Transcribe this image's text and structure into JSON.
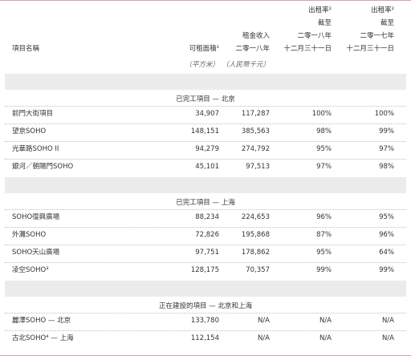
{
  "header": {
    "columns": [
      [
        "項目名稱"
      ],
      [
        "可租面積¹"
      ],
      [
        "租金收入",
        "二零一八年"
      ],
      [
        "出租率²",
        "截至",
        "二零一八年",
        "十二月三十一日"
      ],
      [
        "出租率²",
        "截至",
        "二零一七年",
        "十二月三十一日"
      ]
    ],
    "units": [
      "（平方米）",
      "（人民幣千元）"
    ]
  },
  "sections": [
    {
      "title": "已完工項目 — 北京",
      "rows": [
        [
          "前門大街項目",
          "34,907",
          "117,287",
          "100%",
          "100%"
        ],
        [
          "望京SOHO",
          "148,151",
          "385,563",
          "98%",
          "99%"
        ],
        [
          "光華路SOHO II",
          "94,279",
          "274,792",
          "95%",
          "97%"
        ],
        [
          "銀河／朝陽門SOHO",
          "45,101",
          "97,513",
          "97%",
          "98%"
        ]
      ]
    },
    {
      "title": "已完工項目 — 上海",
      "rows": [
        [
          "SOHO復興廣場",
          "88,234",
          "224,653",
          "96%",
          "95%"
        ],
        [
          "外灘SOHO",
          "72,826",
          "195,868",
          "87%",
          "96%"
        ],
        [
          "SOHO天山廣場",
          "97,751",
          "178,862",
          "95%",
          "64%"
        ],
        [
          "凌空SOHO³",
          "128,175",
          "70,357",
          "99%",
          "99%"
        ]
      ]
    },
    {
      "title": "正在建設的項目 — 北京和上海",
      "rows": [
        [
          "麗澤SOHO — 北京",
          "133,780",
          "N/A",
          "N/A",
          "N/A"
        ],
        [
          "古北SOHO⁴ — 上海",
          "112,154",
          "N/A",
          "N/A",
          "N/A"
        ]
      ]
    }
  ]
}
